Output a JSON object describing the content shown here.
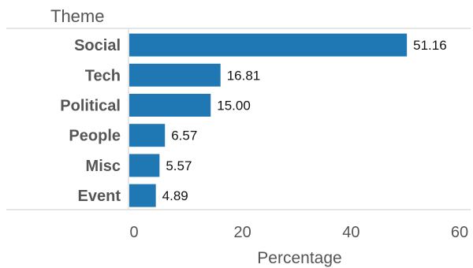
{
  "chart_data": {
    "type": "bar",
    "orientation": "horizontal",
    "category_header": "Theme",
    "categories": [
      "Social",
      "Tech",
      "Political",
      "People",
      "Misc",
      "Event"
    ],
    "values": [
      51.16,
      16.81,
      15.0,
      6.57,
      5.57,
      4.89
    ],
    "value_labels": [
      "51.16",
      "16.81",
      "15.00",
      "6.57",
      "5.57",
      "4.89"
    ],
    "xlabel": "Percentage",
    "ylabel": "",
    "xlim": [
      0,
      60
    ],
    "xticks": [
      0,
      20,
      40,
      60
    ],
    "grid": false,
    "bar_color": "#1f77b4"
  }
}
